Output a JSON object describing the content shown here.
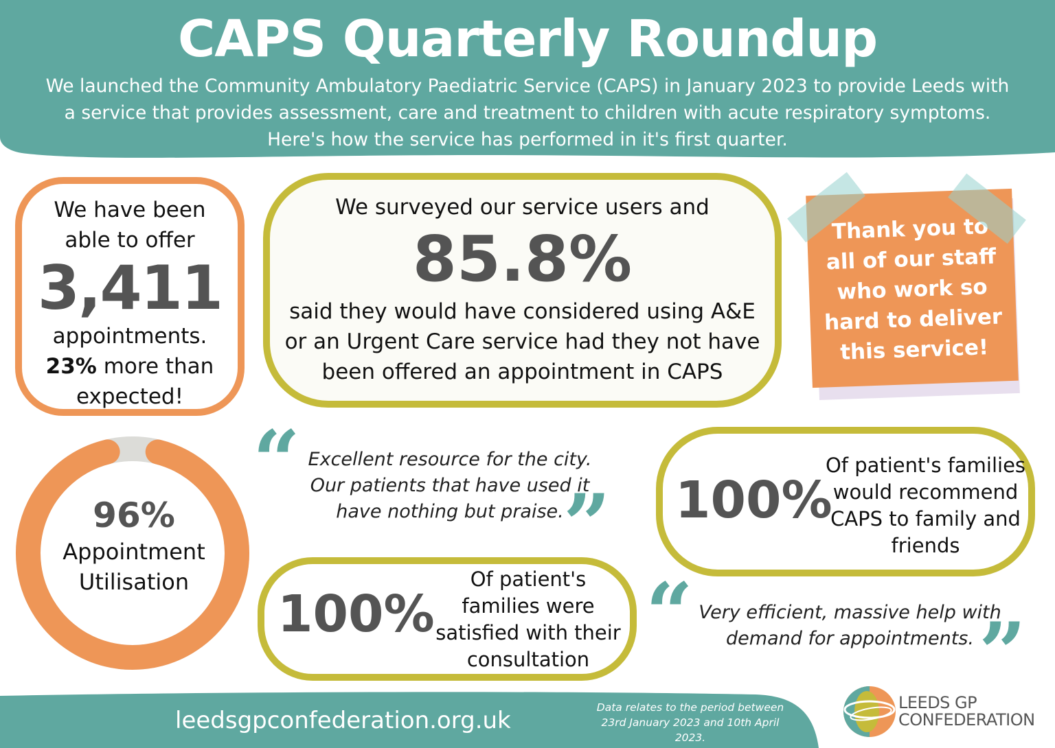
{
  "header": {
    "title": "CAPS Quarterly Roundup",
    "subtitle_lines": [
      "We launched the Community Ambulatory Paediatric Service (CAPS) in January 2023 to provide Leeds with",
      "a service that provides assessment, care and treatment to children with acute respiratory symptoms.",
      "Here's how the service has performed in it's first quarter."
    ]
  },
  "offer": {
    "lines_before": [
      "We have been",
      "able to offer"
    ],
    "number": "3,411",
    "line_after": "appointments.",
    "bold_pct": "23%",
    "more_than": " more than",
    "expected": "expected!"
  },
  "survey": {
    "intro": "We surveyed our service users and",
    "number": "85.8%",
    "lines": [
      "said they would have considered using A&E",
      "or an Urgent Care service had they not have",
      "been offered an appointment in CAPS"
    ]
  },
  "sticky": {
    "lines": [
      "Thank you to",
      "all of our staff",
      "who work so",
      "hard to deliver",
      "this service!"
    ]
  },
  "utilisation": {
    "value_pct": 96,
    "value_label": "96%",
    "label_lines": [
      "Appointment",
      "Utilisation"
    ]
  },
  "quote1": {
    "lines": [
      "Excellent resource for the city.",
      "Our patients that have used it",
      "have nothing but praise."
    ]
  },
  "recommend": {
    "pct": "100%",
    "lines": [
      "Of patient's families",
      "would recommend",
      "CAPS to family and",
      "friends"
    ]
  },
  "satisfied": {
    "pct": "100%",
    "lines": [
      "Of patient's",
      "families were",
      "satisfied with their",
      "consultation"
    ]
  },
  "quote2": {
    "lines": [
      "Very efficient, massive help with",
      "demand for appointments."
    ]
  },
  "footer": {
    "url": "leedsgpconfederation.org.uk",
    "note_lines": [
      "Data relates to the period between",
      "23rd January 2023 and 10th April",
      "2023."
    ],
    "logo_lines": [
      "LEEDS GP",
      "CONFEDERATION"
    ]
  },
  "colors": {
    "teal": "#5fa8a0",
    "orange": "#ee9657",
    "olive": "#c5bb3a",
    "grey_text": "#545454",
    "ring_track": "#dcdcd8"
  }
}
